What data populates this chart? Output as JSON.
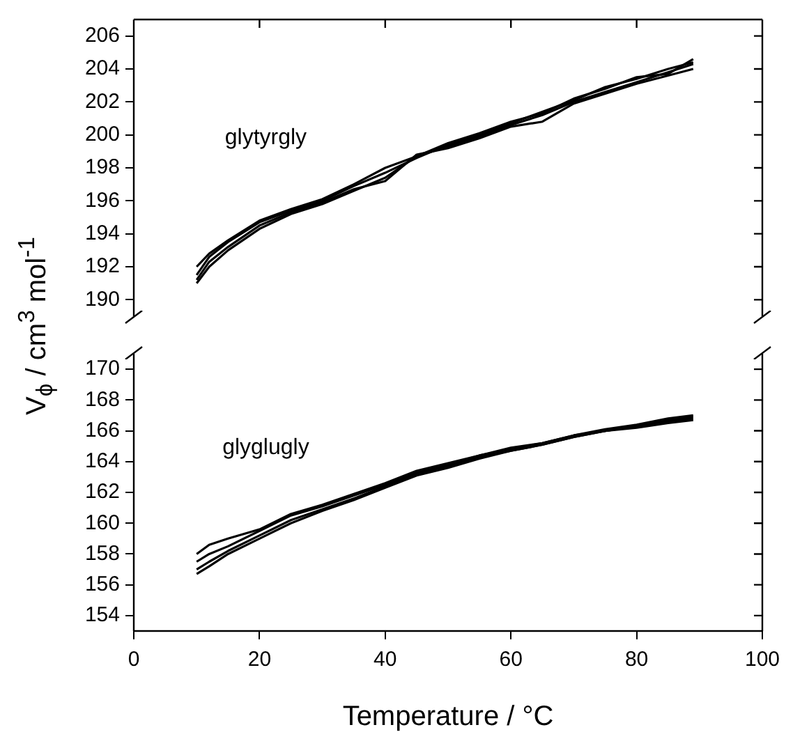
{
  "chart_data": [
    {
      "type": "line",
      "ylabel": "V$_{ϕ}$ / cm$^{3}$ mol$^{-1}$",
      "x": [
        10,
        12,
        15,
        20,
        25,
        30,
        35,
        40,
        45,
        50,
        55,
        60,
        65,
        70,
        75,
        80,
        85,
        89
      ],
      "series": [
        {
          "color": "#000000",
          "values": [
            191.0,
            192.0,
            193.0,
            194.3,
            195.2,
            195.8,
            196.6,
            197.4,
            198.7,
            199.3,
            199.9,
            200.6,
            201.2,
            202.0,
            202.6,
            203.2,
            203.8,
            204.3
          ]
        },
        {
          "color": "#000000",
          "values": [
            191.5,
            192.6,
            193.5,
            194.7,
            195.4,
            196.0,
            196.9,
            197.7,
            198.6,
            199.4,
            200.0,
            200.7,
            201.4,
            202.1,
            202.9,
            203.4,
            204.0,
            204.4
          ]
        },
        {
          "color": "#000000",
          "values": [
            191.2,
            192.3,
            193.2,
            194.5,
            195.3,
            195.9,
            196.7,
            197.2,
            198.8,
            199.2,
            199.8,
            200.5,
            200.8,
            201.9,
            202.5,
            203.1,
            203.6,
            204.0
          ]
        },
        {
          "color": "#000000",
          "values": [
            192.0,
            192.8,
            193.6,
            194.8,
            195.5,
            196.1,
            197.0,
            198.0,
            198.7,
            199.5,
            200.1,
            200.8,
            201.3,
            202.2,
            202.8,
            203.5,
            203.7,
            204.6
          ]
        }
      ],
      "xlim": [
        0,
        100
      ],
      "xticks": [
        0,
        20,
        40,
        60,
        80,
        100
      ],
      "ylim": [
        189,
        207
      ],
      "yticks": [
        190,
        192,
        194,
        196,
        198,
        200,
        202,
        204,
        206
      ],
      "tick_labels": "y",
      "marker": "none",
      "annotations": [
        "glytyrgly"
      ]
    },
    {
      "type": "line",
      "xlabel": "Temperature / °C",
      "x": [
        10,
        12,
        15,
        20,
        25,
        30,
        35,
        40,
        45,
        50,
        55,
        60,
        65,
        70,
        75,
        80,
        85,
        89
      ],
      "series": [
        {
          "color": "#000000",
          "values": [
            158.0,
            158.6,
            159.0,
            159.6,
            160.6,
            161.2,
            161.9,
            162.6,
            163.4,
            163.9,
            164.4,
            164.9,
            165.2,
            165.7,
            166.1,
            166.4,
            166.8,
            167.0
          ]
        },
        {
          "color": "#000000",
          "values": [
            157.5,
            158.0,
            158.5,
            159.5,
            160.5,
            161.1,
            161.8,
            162.5,
            163.3,
            163.8,
            164.4,
            164.8,
            165.2,
            165.7,
            166.0,
            166.3,
            166.6,
            166.8
          ]
        },
        {
          "color": "#000000",
          "values": [
            157.0,
            157.5,
            158.2,
            159.2,
            160.2,
            160.9,
            161.6,
            162.4,
            163.2,
            163.7,
            164.3,
            164.7,
            165.1,
            165.6,
            166.0,
            166.2,
            166.5,
            166.7
          ]
        },
        {
          "color": "#000000",
          "values": [
            156.7,
            157.2,
            158.0,
            159.0,
            160.0,
            160.8,
            161.5,
            162.3,
            163.1,
            163.6,
            164.2,
            164.7,
            165.1,
            165.6,
            166.0,
            166.3,
            166.7,
            166.9
          ]
        }
      ],
      "xlim": [
        0,
        100
      ],
      "xticks": [
        0,
        20,
        40,
        60,
        80,
        100
      ],
      "ylim": [
        153,
        171
      ],
      "yticks": [
        154,
        156,
        158,
        160,
        162,
        164,
        166,
        168,
        170
      ],
      "marker": "none",
      "annotations": [
        "glyglugly"
      ]
    }
  ]
}
